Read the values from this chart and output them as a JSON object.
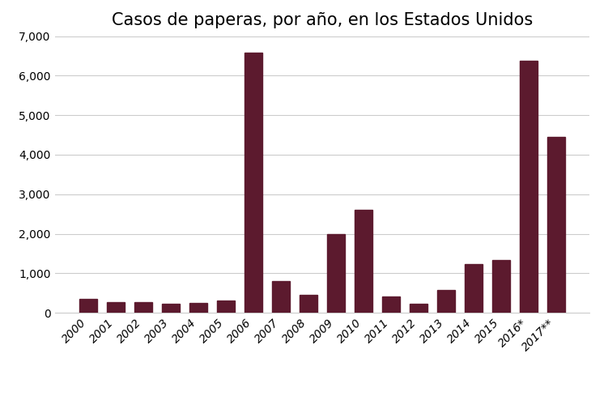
{
  "title": "Casos de paperas, por año, en los Estados Unidos",
  "categories": [
    "2000",
    "2001",
    "2002",
    "2003",
    "2004",
    "2005",
    "2006",
    "2007",
    "2008",
    "2009",
    "2010",
    "2011",
    "2012",
    "2013",
    "2014",
    "2015",
    "2016*",
    "2017**"
  ],
  "values": [
    350,
    270,
    270,
    231,
    258,
    315,
    6584,
    800,
    454,
    2000,
    2612,
    404,
    229,
    584,
    1223,
    1329,
    6366,
    4449
  ],
  "bar_color": "#5C1A2E",
  "background_color": "#ffffff",
  "ylim": [
    0,
    7000
  ],
  "yticks": [
    0,
    1000,
    2000,
    3000,
    4000,
    5000,
    6000,
    7000
  ],
  "title_fontsize": 15,
  "tick_fontsize": 10,
  "bar_width": 0.65,
  "grid_color": "#cccccc",
  "grid_linewidth": 0.8
}
